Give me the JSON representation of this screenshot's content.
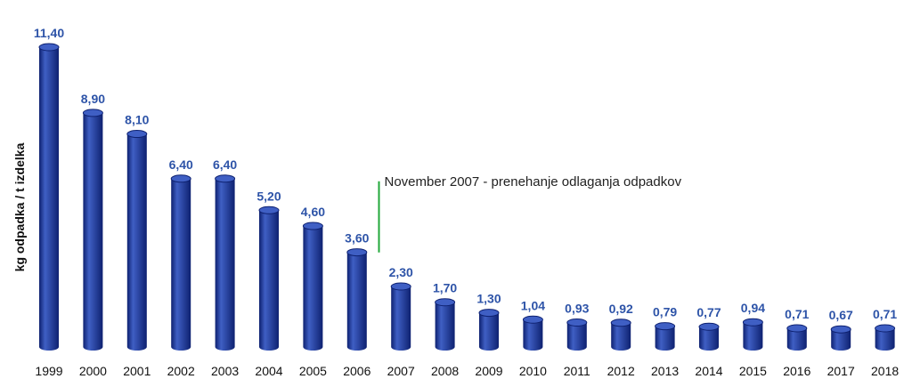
{
  "chart_data": {
    "type": "bar",
    "title": "",
    "xlabel": "",
    "ylabel": "kg odpadka / t izdelka",
    "categories": [
      "1999",
      "2000",
      "2001",
      "2002",
      "2003",
      "2004",
      "2005",
      "2006",
      "2007",
      "2008",
      "2009",
      "2010",
      "2011",
      "2012",
      "2013",
      "2014",
      "2015",
      "2016",
      "2017",
      "2018"
    ],
    "values": [
      11.4,
      8.9,
      8.1,
      6.4,
      6.4,
      5.2,
      4.6,
      3.6,
      2.3,
      1.7,
      1.3,
      1.04,
      0.93,
      0.92,
      0.79,
      0.77,
      0.94,
      0.71,
      0.67,
      0.71
    ],
    "value_labels": [
      "11,40",
      "8,90",
      "8,10",
      "6,40",
      "6,40",
      "5,20",
      "4,60",
      "3,60",
      "2,30",
      "1,70",
      "1,30",
      "1,04",
      "0,93",
      "0,92",
      "0,79",
      "0,77",
      "0,94",
      "0,71",
      "0,67",
      "0,71"
    ],
    "ylim": [
      0,
      11.4
    ],
    "grid": false,
    "legend": "none",
    "colors": {
      "bar": "#1a3a9e",
      "bar_light": "#3f5fc4",
      "bar_dark": "#0e2170",
      "value_label": "#2e54a8",
      "annotation_line": "#22a83a"
    },
    "annotations": [
      {
        "text": "November 2007 - prenehanje odlaganja odpadkov",
        "after_category": "2006",
        "y": 6.3
      }
    ]
  }
}
